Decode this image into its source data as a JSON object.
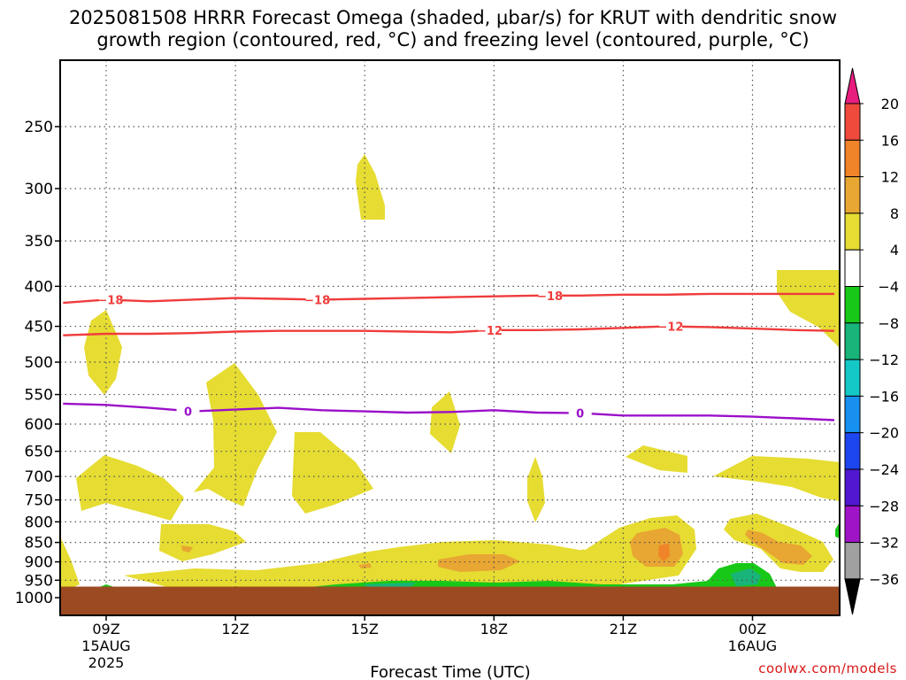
{
  "title_line1": "2025081508 HRRR Forecast Omega (shaded, μbar/s) for KRUT with dendritic snow",
  "title_line2": "growth region (contoured, red, °C) and freezing level (contoured, purple, °C)",
  "credit": "coolwx.com/models",
  "colors": {
    "ground": "#9c4a22",
    "isotherm": "#f03c3c",
    "freezing": "#9b10c8",
    "grid": "#555555"
  },
  "chart_data": {
    "type": "heatmap",
    "xlabel": "Forecast Time (UTC)",
    "ylabel": "",
    "x_range_hours": [
      8,
      25.9
    ],
    "y_range_hpa": [
      1050,
      200
    ],
    "y_ticks": [
      250,
      300,
      350,
      400,
      450,
      500,
      550,
      600,
      650,
      700,
      750,
      800,
      850,
      900,
      950,
      1000
    ],
    "x_ticks": [
      {
        "hour": 9,
        "label": "09Z",
        "date": "15AUG",
        "year": "2025"
      },
      {
        "hour": 12,
        "label": "12Z",
        "date": "",
        "year": ""
      },
      {
        "hour": 15,
        "label": "15Z",
        "date": "",
        "year": ""
      },
      {
        "hour": 18,
        "label": "18Z",
        "date": "",
        "year": ""
      },
      {
        "hour": 21,
        "label": "21Z",
        "date": "",
        "year": ""
      },
      {
        "hour": 24,
        "label": "00Z",
        "date": "16AUG",
        "year": ""
      }
    ],
    "grid": true,
    "colorbar": {
      "labels": [
        "20",
        "16",
        "12",
        "8",
        "4",
        "−4",
        "−8",
        "−12",
        "−16",
        "−20",
        "−24",
        "−28",
        "−32",
        "−36"
      ],
      "colors": [
        "#e81e7e",
        "#f04a3c",
        "#f08428",
        "#e8a632",
        "#e6dc32",
        "#ffffff",
        "#18c818",
        "#18b47a",
        "#14c8c8",
        "#1890f0",
        "#1e46f0",
        "#5018d0",
        "#a014c8",
        "#a0a0a0",
        "#000000"
      ]
    },
    "isotherms": [
      {
        "label": "-18",
        "color": "red",
        "points": [
          [
            8,
            420
          ],
          [
            9,
            416
          ],
          [
            10,
            418
          ],
          [
            11,
            416
          ],
          [
            12,
            414
          ],
          [
            13,
            415
          ],
          [
            14,
            416
          ],
          [
            15,
            415
          ],
          [
            16,
            414
          ],
          [
            17,
            413
          ],
          [
            18,
            412
          ],
          [
            19,
            411
          ],
          [
            20,
            411
          ],
          [
            21,
            410
          ],
          [
            22,
            410
          ],
          [
            23,
            409
          ],
          [
            24,
            409
          ],
          [
            25,
            409
          ],
          [
            25.9,
            409
          ]
        ]
      },
      {
        "label": "-12",
        "color": "red",
        "points": [
          [
            8,
            462
          ],
          [
            9,
            460
          ],
          [
            10,
            460
          ],
          [
            11,
            459
          ],
          [
            12,
            457
          ],
          [
            13,
            456
          ],
          [
            14,
            456
          ],
          [
            15,
            456
          ],
          [
            16,
            457
          ],
          [
            17,
            458
          ],
          [
            18,
            455
          ],
          [
            19,
            455
          ],
          [
            20,
            454
          ],
          [
            21,
            452
          ],
          [
            22,
            450
          ],
          [
            23,
            451
          ],
          [
            24,
            453
          ],
          [
            25,
            455
          ],
          [
            25.9,
            456
          ]
        ]
      },
      {
        "label": "0",
        "color": "purple",
        "points": [
          [
            8,
            565
          ],
          [
            9,
            567
          ],
          [
            10,
            572
          ],
          [
            11,
            578
          ],
          [
            12,
            575
          ],
          [
            13,
            572
          ],
          [
            14,
            576
          ],
          [
            15,
            578
          ],
          [
            16,
            580
          ],
          [
            17,
            579
          ],
          [
            18,
            576
          ],
          [
            19,
            580
          ],
          [
            20,
            581
          ],
          [
            21,
            585
          ],
          [
            22,
            585
          ],
          [
            23,
            585
          ],
          [
            24,
            587
          ],
          [
            25,
            590
          ],
          [
            25.9,
            593
          ]
        ]
      }
    ],
    "ground_hpa": 968
  }
}
